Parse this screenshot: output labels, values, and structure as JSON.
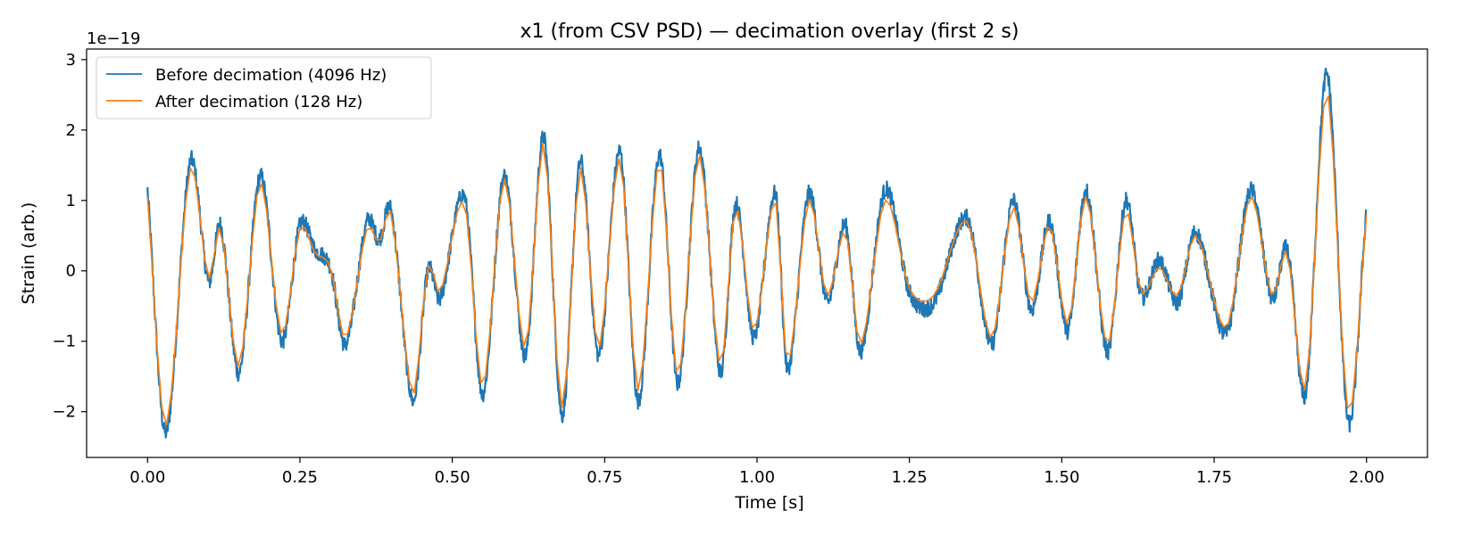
{
  "chart_data": {
    "type": "line",
    "title": "x1 (from CSV PSD) — decimation overlay (first 2 s)",
    "xlabel": "Time [s]",
    "ylabel": "Strain (arb.)",
    "y_offset_label": "1e−19",
    "xlim": [
      -0.1,
      2.1
    ],
    "ylim": [
      -2.65,
      3.15
    ],
    "xticks": [
      0.0,
      0.25,
      0.5,
      0.75,
      1.0,
      1.25,
      1.5,
      1.75,
      2.0
    ],
    "xtick_labels": [
      "0.00",
      "0.25",
      "0.50",
      "0.75",
      "1.00",
      "1.25",
      "1.50",
      "1.75",
      "2.00"
    ],
    "yticks": [
      -2,
      -1,
      0,
      1,
      2,
      3
    ],
    "ytick_labels": [
      "−2",
      "−1",
      "0",
      "1",
      "2",
      "3"
    ],
    "legend_position": "top-left",
    "series": [
      {
        "name": "Before decimation (4096 Hz)",
        "color": "#1f77b4",
        "sample_rate_hz": 4096,
        "noise_band": 0.12,
        "x": [
          0.0,
          0.03,
          0.07,
          0.1,
          0.12,
          0.15,
          0.185,
          0.22,
          0.25,
          0.275,
          0.3,
          0.325,
          0.36,
          0.38,
          0.4,
          0.435,
          0.46,
          0.48,
          0.52,
          0.55,
          0.585,
          0.62,
          0.65,
          0.68,
          0.71,
          0.74,
          0.775,
          0.805,
          0.84,
          0.87,
          0.905,
          0.94,
          0.965,
          0.995,
          1.03,
          1.05,
          1.085,
          1.115,
          1.145,
          1.17,
          1.21,
          1.25,
          1.29,
          1.345,
          1.385,
          1.42,
          1.45,
          1.48,
          1.51,
          1.54,
          1.575,
          1.605,
          1.63,
          1.66,
          1.69,
          1.72,
          1.77,
          1.81,
          1.845,
          1.87,
          1.9,
          1.935,
          1.97,
          2.0
        ],
        "values": [
          1.15,
          -2.3,
          1.55,
          -0.15,
          0.65,
          -1.45,
          1.35,
          -1.0,
          0.65,
          0.3,
          0.05,
          -1.05,
          0.7,
          0.45,
          0.85,
          -1.85,
          0.0,
          -0.4,
          1.05,
          -1.75,
          1.35,
          -1.2,
          1.9,
          -2.05,
          1.55,
          -1.2,
          1.7,
          -1.85,
          1.65,
          -1.6,
          1.75,
          -1.45,
          0.95,
          -0.95,
          1.1,
          -1.4,
          1.1,
          -0.45,
          0.65,
          -1.15,
          1.15,
          -0.3,
          -0.45,
          0.75,
          -1.05,
          1.0,
          -0.55,
          0.7,
          -0.85,
          1.15,
          -1.15,
          1.0,
          -0.35,
          0.15,
          -0.45,
          0.55,
          -0.9,
          1.15,
          -0.4,
          0.3,
          -1.75,
          2.8,
          -2.15,
          0.9
        ]
      },
      {
        "name": "After decimation (128 Hz)",
        "color": "#ff7f0e",
        "sample_rate_hz": 128,
        "x": [
          0.0,
          0.03,
          0.07,
          0.1,
          0.12,
          0.15,
          0.185,
          0.22,
          0.25,
          0.275,
          0.3,
          0.325,
          0.36,
          0.38,
          0.4,
          0.435,
          0.46,
          0.48,
          0.52,
          0.55,
          0.585,
          0.62,
          0.65,
          0.68,
          0.71,
          0.74,
          0.775,
          0.805,
          0.84,
          0.87,
          0.905,
          0.94,
          0.965,
          0.995,
          1.03,
          1.05,
          1.085,
          1.115,
          1.145,
          1.17,
          1.21,
          1.25,
          1.29,
          1.345,
          1.385,
          1.42,
          1.45,
          1.48,
          1.51,
          1.54,
          1.575,
          1.605,
          1.63,
          1.66,
          1.69,
          1.72,
          1.77,
          1.81,
          1.845,
          1.87,
          1.9,
          1.935,
          1.97,
          2.0
        ],
        "values": [
          1.05,
          -2.2,
          1.45,
          -0.1,
          0.6,
          -1.35,
          1.25,
          -0.9,
          0.6,
          0.25,
          0.05,
          -0.95,
          0.6,
          0.4,
          0.8,
          -1.75,
          0.05,
          -0.3,
          0.95,
          -1.65,
          1.3,
          -1.1,
          1.8,
          -1.95,
          1.45,
          -1.1,
          1.6,
          -1.7,
          1.55,
          -1.5,
          1.65,
          -1.35,
          0.9,
          -0.85,
          1.0,
          -1.3,
          1.0,
          -0.35,
          0.55,
          -1.05,
          1.0,
          -0.25,
          -0.35,
          0.7,
          -0.95,
          0.9,
          -0.45,
          0.65,
          -0.75,
          1.05,
          -1.05,
          0.85,
          -0.3,
          0.05,
          -0.35,
          0.5,
          -0.8,
          1.05,
          -0.35,
          0.25,
          -1.65,
          2.55,
          -2.0,
          0.8
        ]
      }
    ]
  }
}
